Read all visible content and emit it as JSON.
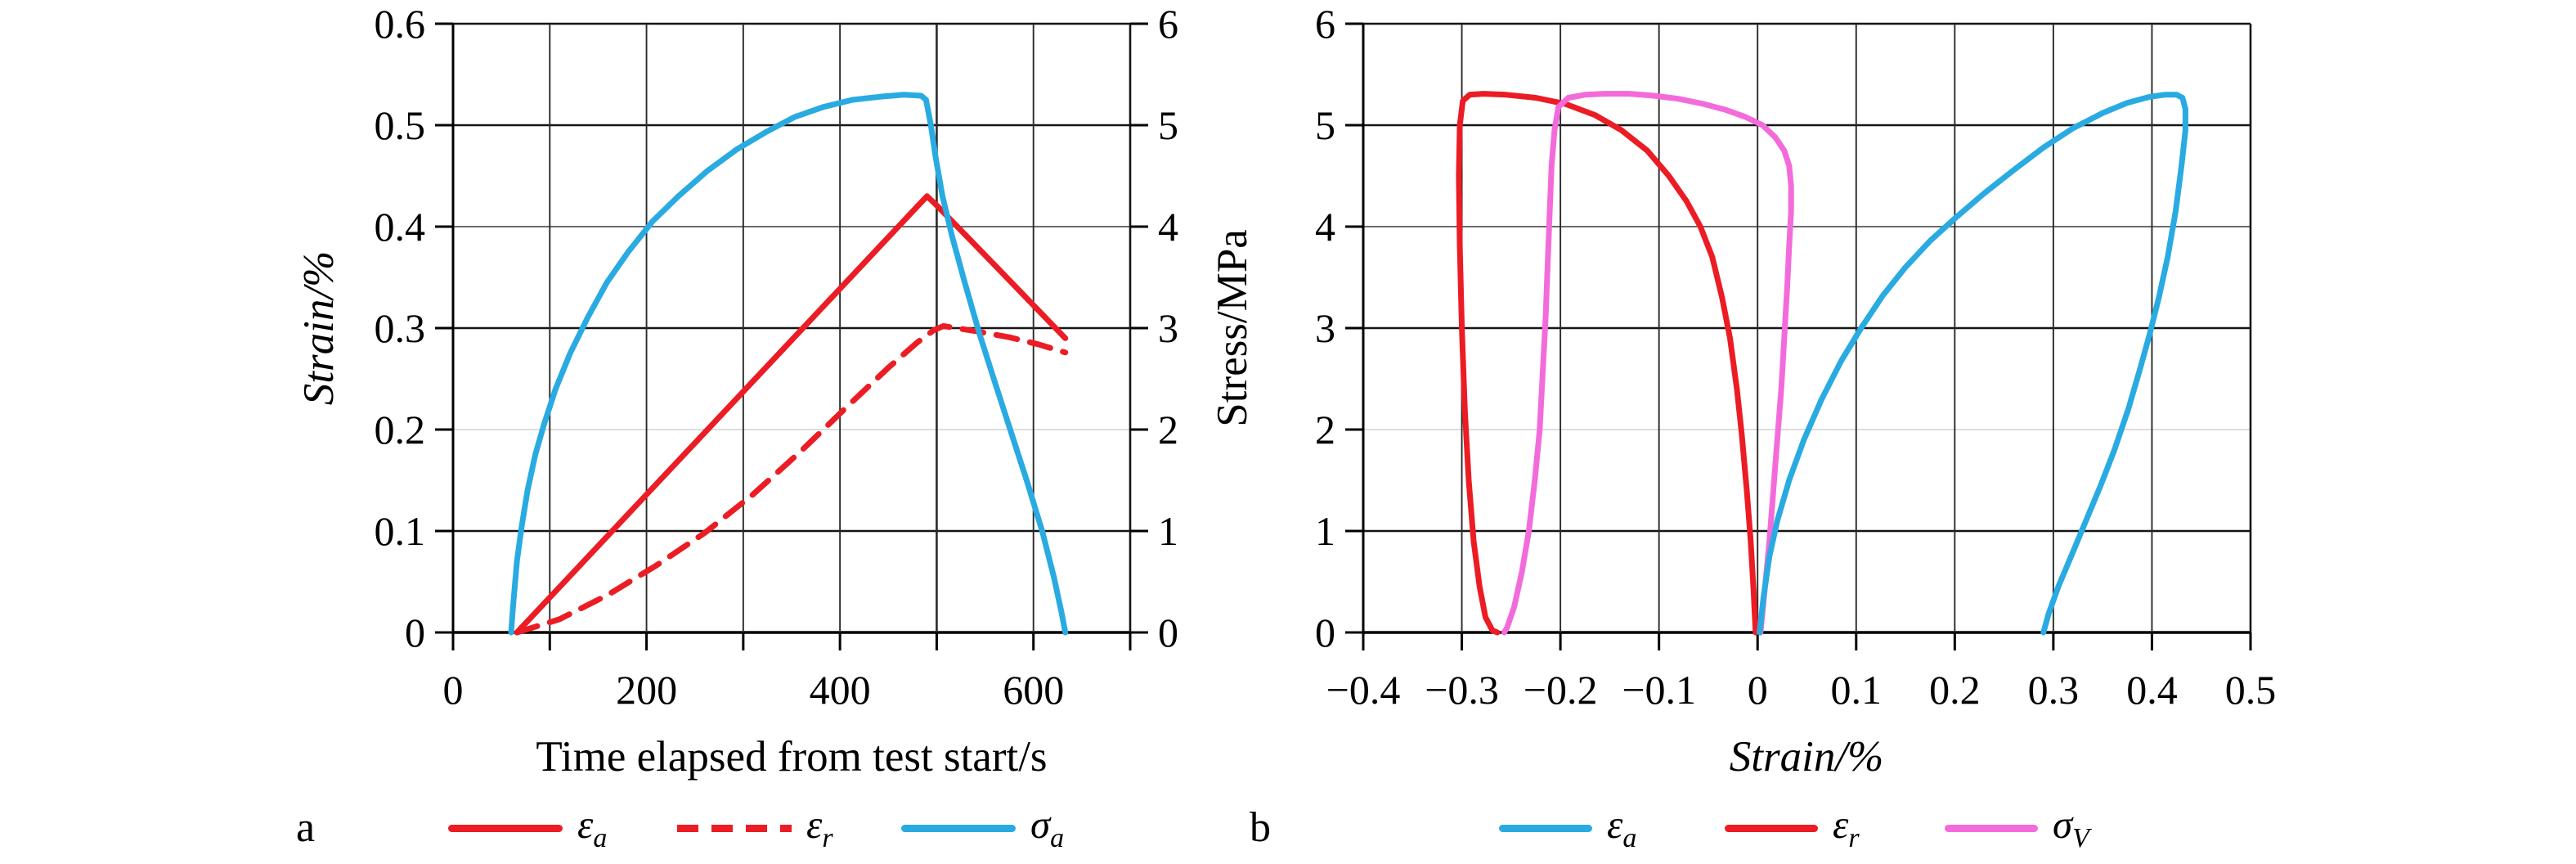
{
  "page": {
    "background": "#ffffff",
    "text_color": "#000000",
    "grid_light_color": "#d2d2d2",
    "grid_dark_color": "#151515"
  },
  "chart_data": [
    {
      "id": "a",
      "type": "line",
      "panel_label": "a",
      "grid": true,
      "x_axis": {
        "label": "Time elapsed from test start/s",
        "label_italic": false,
        "min": 0,
        "max": 700,
        "grid_step": 100,
        "ticks": [
          {
            "v": 0,
            "t": "0"
          },
          {
            "v": 200,
            "t": "200"
          },
          {
            "v": 400,
            "t": "400"
          },
          {
            "v": 600,
            "t": "600"
          }
        ]
      },
      "y_left": {
        "label": "Strain/%",
        "label_italic": true,
        "min": 0,
        "max": 0.6,
        "grid_step": 0.1,
        "ticks": [
          {
            "v": 0,
            "t": "0"
          },
          {
            "v": 0.1,
            "t": "0.1"
          },
          {
            "v": 0.2,
            "t": "0.2"
          },
          {
            "v": 0.3,
            "t": "0.3"
          },
          {
            "v": 0.4,
            "t": "0.4"
          },
          {
            "v": 0.5,
            "t": "0.5"
          },
          {
            "v": 0.6,
            "t": "0.6"
          }
        ]
      },
      "y_right": {
        "label": "Stress/MPa",
        "label_italic": false,
        "min": 0,
        "max": 6,
        "grid_step": 1,
        "ticks": [
          {
            "v": 0,
            "t": "0"
          },
          {
            "v": 1,
            "t": "1"
          },
          {
            "v": 2,
            "t": "2"
          },
          {
            "v": 3,
            "t": "3"
          },
          {
            "v": 4,
            "t": "4"
          },
          {
            "v": 5,
            "t": "5"
          },
          {
            "v": 6,
            "t": "6"
          }
        ]
      },
      "series": [
        {
          "name": "eps_a",
          "legend": {
            "symbol": "ε",
            "sub": "a"
          },
          "color": "#ec1c24",
          "style": "solid",
          "axis": "left",
          "points": [
            [
              66,
              0
            ],
            [
              200,
              0.136
            ],
            [
              340,
              0.278
            ],
            [
              480,
              0.42
            ],
            [
              490,
              0.43
            ],
            [
              500,
              0.421
            ],
            [
              560,
              0.362
            ],
            [
              633,
              0.29
            ]
          ]
        },
        {
          "name": "eps_r",
          "legend": {
            "symbol": "ε",
            "sub": "r"
          },
          "color": "#ec1c24",
          "style": "dashed",
          "axis": "left",
          "points": [
            [
              66,
              0
            ],
            [
              110,
              0.013
            ],
            [
              160,
              0.037
            ],
            [
              210,
              0.066
            ],
            [
              260,
              0.098
            ],
            [
              310,
              0.136
            ],
            [
              360,
              0.179
            ],
            [
              410,
              0.225
            ],
            [
              450,
              0.261
            ],
            [
              480,
              0.286
            ],
            [
              497,
              0.298
            ],
            [
              507,
              0.302
            ],
            [
              540,
              0.297
            ],
            [
              575,
              0.291
            ],
            [
              605,
              0.284
            ],
            [
              633,
              0.276
            ]
          ]
        },
        {
          "name": "sigma_a",
          "legend": {
            "symbol": "σ",
            "sub": "a"
          },
          "color": "#29abe2",
          "style": "solid",
          "axis": "right",
          "points": [
            [
              60,
              0
            ],
            [
              62,
              0.25
            ],
            [
              66,
              0.7
            ],
            [
              71,
              1.05
            ],
            [
              77,
              1.4
            ],
            [
              85,
              1.75
            ],
            [
              94,
              2.05
            ],
            [
              106,
              2.4
            ],
            [
              121,
              2.75
            ],
            [
              139,
              3.1
            ],
            [
              159,
              3.45
            ],
            [
              181,
              3.75
            ],
            [
              206,
              4.05
            ],
            [
              233,
              4.3
            ],
            [
              263,
              4.55
            ],
            [
              293,
              4.76
            ],
            [
              323,
              4.93
            ],
            [
              353,
              5.08
            ],
            [
              383,
              5.18
            ],
            [
              413,
              5.25
            ],
            [
              441,
              5.28
            ],
            [
              466,
              5.3
            ],
            [
              484,
              5.29
            ],
            [
              489,
              5.25
            ],
            [
              494,
              5.0
            ],
            [
              499,
              4.68
            ],
            [
              506,
              4.3
            ],
            [
              516,
              3.9
            ],
            [
              529,
              3.45
            ],
            [
              544,
              2.95
            ],
            [
              559,
              2.5
            ],
            [
              576,
              2.0
            ],
            [
              593,
              1.5
            ],
            [
              609,
              1.0
            ],
            [
              621,
              0.55
            ],
            [
              629,
              0.2
            ],
            [
              633,
              0
            ]
          ]
        }
      ]
    },
    {
      "id": "b",
      "type": "line",
      "panel_label": "b",
      "grid": true,
      "x_axis": {
        "label": "Strain/%",
        "label_italic": true,
        "min": -0.4,
        "max": 0.5,
        "grid_step": 0.1,
        "ticks": [
          {
            "v": -0.4,
            "t": "−0.4"
          },
          {
            "v": -0.3,
            "t": "−0.3"
          },
          {
            "v": -0.2,
            "t": "−0.2"
          },
          {
            "v": -0.1,
            "t": "−0.1"
          },
          {
            "v": 0,
            "t": "0"
          },
          {
            "v": 0.1,
            "t": "0.1"
          },
          {
            "v": 0.2,
            "t": "0.2"
          },
          {
            "v": 0.3,
            "t": "0.3"
          },
          {
            "v": 0.4,
            "t": "0.4"
          },
          {
            "v": 0.5,
            "t": "0.5"
          }
        ]
      },
      "y_left": {
        "label": "",
        "label_italic": false,
        "min": 0,
        "max": 6,
        "grid_step": 1,
        "ticks": [
          {
            "v": 0,
            "t": "0"
          },
          {
            "v": 1,
            "t": "1"
          },
          {
            "v": 2,
            "t": "2"
          },
          {
            "v": 3,
            "t": "3"
          },
          {
            "v": 4,
            "t": "4"
          },
          {
            "v": 5,
            "t": "5"
          },
          {
            "v": 6,
            "t": "6"
          }
        ]
      },
      "series": [
        {
          "name": "eps_a",
          "legend": {
            "symbol": "ε",
            "sub": "a"
          },
          "color": "#29abe2",
          "style": "solid",
          "axis": "left",
          "points": [
            [
              0.002,
              0
            ],
            [
              0.006,
              0.35
            ],
            [
              0.012,
              0.75
            ],
            [
              0.02,
              1.1
            ],
            [
              0.032,
              1.5
            ],
            [
              0.047,
              1.9
            ],
            [
              0.065,
              2.3
            ],
            [
              0.085,
              2.68
            ],
            [
              0.105,
              3.0
            ],
            [
              0.127,
              3.32
            ],
            [
              0.15,
              3.6
            ],
            [
              0.175,
              3.86
            ],
            [
              0.2,
              4.08
            ],
            [
              0.23,
              4.33
            ],
            [
              0.26,
              4.56
            ],
            [
              0.29,
              4.78
            ],
            [
              0.32,
              4.97
            ],
            [
              0.35,
              5.12
            ],
            [
              0.375,
              5.22
            ],
            [
              0.398,
              5.28
            ],
            [
              0.413,
              5.3
            ],
            [
              0.425,
              5.3
            ],
            [
              0.431,
              5.27
            ],
            [
              0.434,
              5.16
            ],
            [
              0.434,
              4.95
            ],
            [
              0.43,
              4.6
            ],
            [
              0.424,
              4.15
            ],
            [
              0.416,
              3.7
            ],
            [
              0.407,
              3.3
            ],
            [
              0.398,
              2.95
            ],
            [
              0.388,
              2.6
            ],
            [
              0.376,
              2.2
            ],
            [
              0.362,
              1.8
            ],
            [
              0.348,
              1.45
            ],
            [
              0.333,
              1.1
            ],
            [
              0.318,
              0.75
            ],
            [
              0.305,
              0.45
            ],
            [
              0.295,
              0.18
            ],
            [
              0.29,
              0
            ]
          ]
        },
        {
          "name": "eps_r",
          "legend": {
            "symbol": "ε",
            "sub": "r"
          },
          "color": "#ec1c24",
          "style": "solid",
          "axis": "left",
          "points": [
            [
              -0.002,
              0
            ],
            [
              -0.004,
              0.4
            ],
            [
              -0.007,
              0.9
            ],
            [
              -0.011,
              1.4
            ],
            [
              -0.016,
              1.95
            ],
            [
              -0.021,
              2.4
            ],
            [
              -0.028,
              2.9
            ],
            [
              -0.036,
              3.3
            ],
            [
              -0.046,
              3.7
            ],
            [
              -0.058,
              4.0
            ],
            [
              -0.072,
              4.25
            ],
            [
              -0.09,
              4.5
            ],
            [
              -0.112,
              4.75
            ],
            [
              -0.138,
              4.95
            ],
            [
              -0.165,
              5.1
            ],
            [
              -0.195,
              5.21
            ],
            [
              -0.225,
              5.27
            ],
            [
              -0.255,
              5.3
            ],
            [
              -0.278,
              5.31
            ],
            [
              -0.292,
              5.3
            ],
            [
              -0.299,
              5.24
            ],
            [
              -0.302,
              5.0
            ],
            [
              -0.303,
              4.5
            ],
            [
              -0.302,
              3.8
            ],
            [
              -0.3,
              3.0
            ],
            [
              -0.297,
              2.2
            ],
            [
              -0.293,
              1.5
            ],
            [
              -0.288,
              0.9
            ],
            [
              -0.282,
              0.45
            ],
            [
              -0.276,
              0.15
            ],
            [
              -0.269,
              0.02
            ],
            [
              -0.264,
              0
            ]
          ]
        },
        {
          "name": "sigma_V",
          "legend": {
            "symbol": "σ",
            "sub": "V"
          },
          "color": "#f36bdb",
          "style": "solid",
          "axis": "left",
          "points": [
            [
              0.003,
              0
            ],
            [
              0.007,
              0.4
            ],
            [
              0.012,
              0.9
            ],
            [
              0.016,
              1.4
            ],
            [
              0.02,
              1.9
            ],
            [
              0.024,
              2.4
            ],
            [
              0.027,
              2.9
            ],
            [
              0.03,
              3.4
            ],
            [
              0.032,
              3.8
            ],
            [
              0.034,
              4.15
            ],
            [
              0.034,
              4.4
            ],
            [
              0.032,
              4.6
            ],
            [
              0.027,
              4.75
            ],
            [
              0.018,
              4.88
            ],
            [
              0.005,
              5.0
            ],
            [
              -0.012,
              5.08
            ],
            [
              -0.032,
              5.15
            ],
            [
              -0.055,
              5.21
            ],
            [
              -0.08,
              5.26
            ],
            [
              -0.105,
              5.29
            ],
            [
              -0.13,
              5.31
            ],
            [
              -0.155,
              5.31
            ],
            [
              -0.175,
              5.3
            ],
            [
              -0.192,
              5.27
            ],
            [
              -0.202,
              5.18
            ],
            [
              -0.206,
              4.95
            ],
            [
              -0.209,
              4.6
            ],
            [
              -0.211,
              4.1
            ],
            [
              -0.213,
              3.6
            ],
            [
              -0.215,
              3.1
            ],
            [
              -0.218,
              2.55
            ],
            [
              -0.221,
              2.0
            ],
            [
              -0.226,
              1.5
            ],
            [
              -0.232,
              1.0
            ],
            [
              -0.239,
              0.6
            ],
            [
              -0.247,
              0.25
            ],
            [
              -0.254,
              0.05
            ],
            [
              -0.257,
              0
            ]
          ]
        }
      ]
    }
  ]
}
